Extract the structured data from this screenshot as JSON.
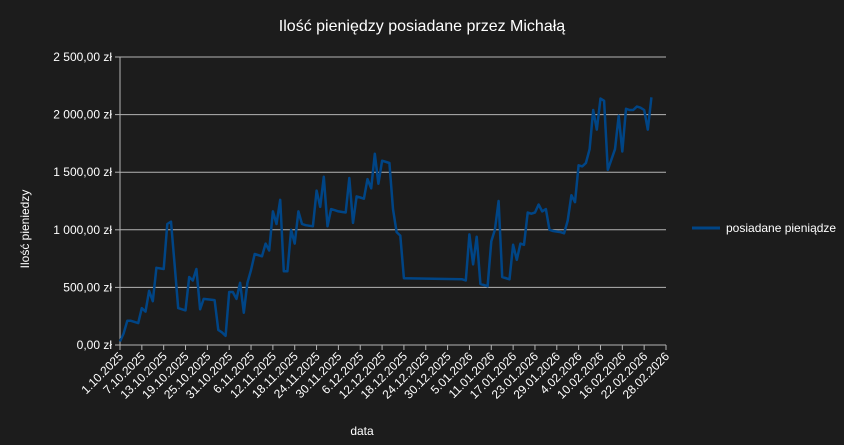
{
  "chart_data": {
    "type": "line",
    "title": "Ilość pieniędzy posiadane przez Michałą",
    "xlabel": "data",
    "ylabel": "Ilość pieniedzy",
    "ylim": [
      0,
      2500
    ],
    "y_ticks": [
      "0,00 zł",
      "500,00 zł",
      "1 000,00 zł",
      "1 500,00 zł",
      "2 000,00 zł",
      "2 500,00 zł"
    ],
    "grid": true,
    "legend_position": "right",
    "x_tick_labels": [
      "1.10.2025",
      "7.10.2025",
      "13.10.2025",
      "19.10.2025",
      "25.10.2025",
      "31.10.2025",
      "6.11.2025",
      "12.11.2025",
      "18.11.2025",
      "24.11.2025",
      "30.11.2025",
      "6.12.2025",
      "12.12.2025",
      "18.12.2025",
      "24.12.2025",
      "30.12.2025",
      "5.01.2026",
      "11.01.2026",
      "17.01.2026",
      "23.01.2026",
      "29.01.2026",
      "4.02.2026",
      "10.02.2026",
      "16.02.2026",
      "22.02.2026",
      "28.02.2026"
    ],
    "x_start": "1.10.2025",
    "x_end": "28.02.2026",
    "series": [
      {
        "name": "posiadane pieniądze",
        "color": "#004586",
        "points": [
          [
            "1.10.2025",
            30
          ],
          [
            "2.10.2025",
            100
          ],
          [
            "3.10.2025",
            210
          ],
          [
            "4.10.2025",
            210
          ],
          [
            "6.10.2025",
            190
          ],
          [
            "7.10.2025",
            320
          ],
          [
            "8.10.2025",
            290
          ],
          [
            "9.10.2025",
            470
          ],
          [
            "10.10.2025",
            380
          ],
          [
            "11.10.2025",
            670
          ],
          [
            "13.10.2025",
            660
          ],
          [
            "14.10.2025",
            1050
          ],
          [
            "15.10.2025",
            1070
          ],
          [
            "16.10.2025",
            700
          ],
          [
            "17.10.2025",
            320
          ],
          [
            "19.10.2025",
            300
          ],
          [
            "20.10.2025",
            590
          ],
          [
            "21.10.2025",
            560
          ],
          [
            "22.10.2025",
            660
          ],
          [
            "23.10.2025",
            310
          ],
          [
            "24.10.2025",
            400
          ],
          [
            "27.10.2025",
            390
          ],
          [
            "28.10.2025",
            130
          ],
          [
            "29.10.2025",
            110
          ],
          [
            "30.10.2025",
            80
          ],
          [
            "31.10.2025",
            460
          ],
          [
            "1.11.2025",
            460
          ],
          [
            "2.11.2025",
            400
          ],
          [
            "3.11.2025",
            540
          ],
          [
            "4.11.2025",
            280
          ],
          [
            "5.11.2025",
            540
          ],
          [
            "6.11.2025",
            650
          ],
          [
            "7.11.2025",
            790
          ],
          [
            "9.11.2025",
            770
          ],
          [
            "10.11.2025",
            880
          ],
          [
            "11.11.2025",
            820
          ],
          [
            "12.11.2025",
            1160
          ],
          [
            "13.11.2025",
            1050
          ],
          [
            "14.11.2025",
            1260
          ],
          [
            "15.11.2025",
            640
          ],
          [
            "16.11.2025",
            640
          ],
          [
            "17.11.2025",
            1000
          ],
          [
            "18.11.2025",
            880
          ],
          [
            "19.11.2025",
            1160
          ],
          [
            "20.11.2025",
            1050
          ],
          [
            "21.11.2025",
            1040
          ],
          [
            "23.11.2025",
            1030
          ],
          [
            "24.11.2025",
            1340
          ],
          [
            "25.11.2025",
            1200
          ],
          [
            "26.11.2025",
            1460
          ],
          [
            "27.11.2025",
            1030
          ],
          [
            "28.11.2025",
            1180
          ],
          [
            "29.11.2025",
            1170
          ],
          [
            "30.11.2025",
            1160
          ],
          [
            "2.12.2025",
            1150
          ],
          [
            "3.12.2025",
            1450
          ],
          [
            "4.12.2025",
            1060
          ],
          [
            "5.12.2025",
            1290
          ],
          [
            "6.12.2025",
            1280
          ],
          [
            "7.12.2025",
            1270
          ],
          [
            "8.12.2025",
            1440
          ],
          [
            "9.12.2025",
            1360
          ],
          [
            "10.12.2025",
            1660
          ],
          [
            "11.12.2025",
            1400
          ],
          [
            "12.12.2025",
            1600
          ],
          [
            "14.12.2025",
            1580
          ],
          [
            "15.12.2025",
            1180
          ],
          [
            "16.12.2025",
            980
          ],
          [
            "17.12.2025",
            950
          ],
          [
            "18.12.2025",
            580
          ],
          [
            "3.01.2026",
            570
          ],
          [
            "4.01.2026",
            560
          ],
          [
            "5.01.2026",
            960
          ],
          [
            "6.01.2026",
            700
          ],
          [
            "7.01.2026",
            940
          ],
          [
            "8.01.2026",
            530
          ],
          [
            "10.01.2026",
            510
          ],
          [
            "11.01.2026",
            900
          ],
          [
            "12.01.2026",
            1000
          ],
          [
            "13.01.2026",
            1250
          ],
          [
            "14.01.2026",
            590
          ],
          [
            "16.01.2026",
            570
          ],
          [
            "17.01.2026",
            870
          ],
          [
            "18.01.2026",
            740
          ],
          [
            "19.01.2026",
            880
          ],
          [
            "20.01.2026",
            870
          ],
          [
            "21.01.2026",
            1150
          ],
          [
            "22.01.2026",
            1140
          ],
          [
            "23.01.2026",
            1150
          ],
          [
            "24.01.2026",
            1220
          ],
          [
            "25.01.2026",
            1160
          ],
          [
            "26.01.2026",
            1180
          ],
          [
            "27.01.2026",
            1000
          ],
          [
            "28.01.2026",
            990
          ],
          [
            "30.01.2026",
            980
          ],
          [
            "31.01.2026",
            970
          ],
          [
            "1.02.2026",
            1080
          ],
          [
            "2.02.2026",
            1300
          ],
          [
            "3.02.2026",
            1240
          ],
          [
            "4.02.2026",
            1560
          ],
          [
            "5.02.2026",
            1550
          ],
          [
            "6.02.2026",
            1580
          ],
          [
            "7.02.2026",
            1700
          ],
          [
            "8.02.2026",
            2040
          ],
          [
            "9.02.2026",
            1870
          ],
          [
            "10.02.2026",
            2140
          ],
          [
            "11.02.2026",
            2120
          ],
          [
            "12.02.2026",
            1520
          ],
          [
            "14.02.2026",
            1700
          ],
          [
            "15.02.2026",
            1990
          ],
          [
            "16.02.2026",
            1680
          ],
          [
            "17.02.2026",
            2050
          ],
          [
            "18.02.2026",
            2040
          ],
          [
            "19.02.2026",
            2040
          ],
          [
            "20.02.2026",
            2070
          ],
          [
            "21.02.2026",
            2060
          ],
          [
            "22.02.2026",
            2040
          ],
          [
            "23.02.2026",
            1870
          ],
          [
            "24.02.2026",
            2150
          ]
        ]
      }
    ]
  }
}
